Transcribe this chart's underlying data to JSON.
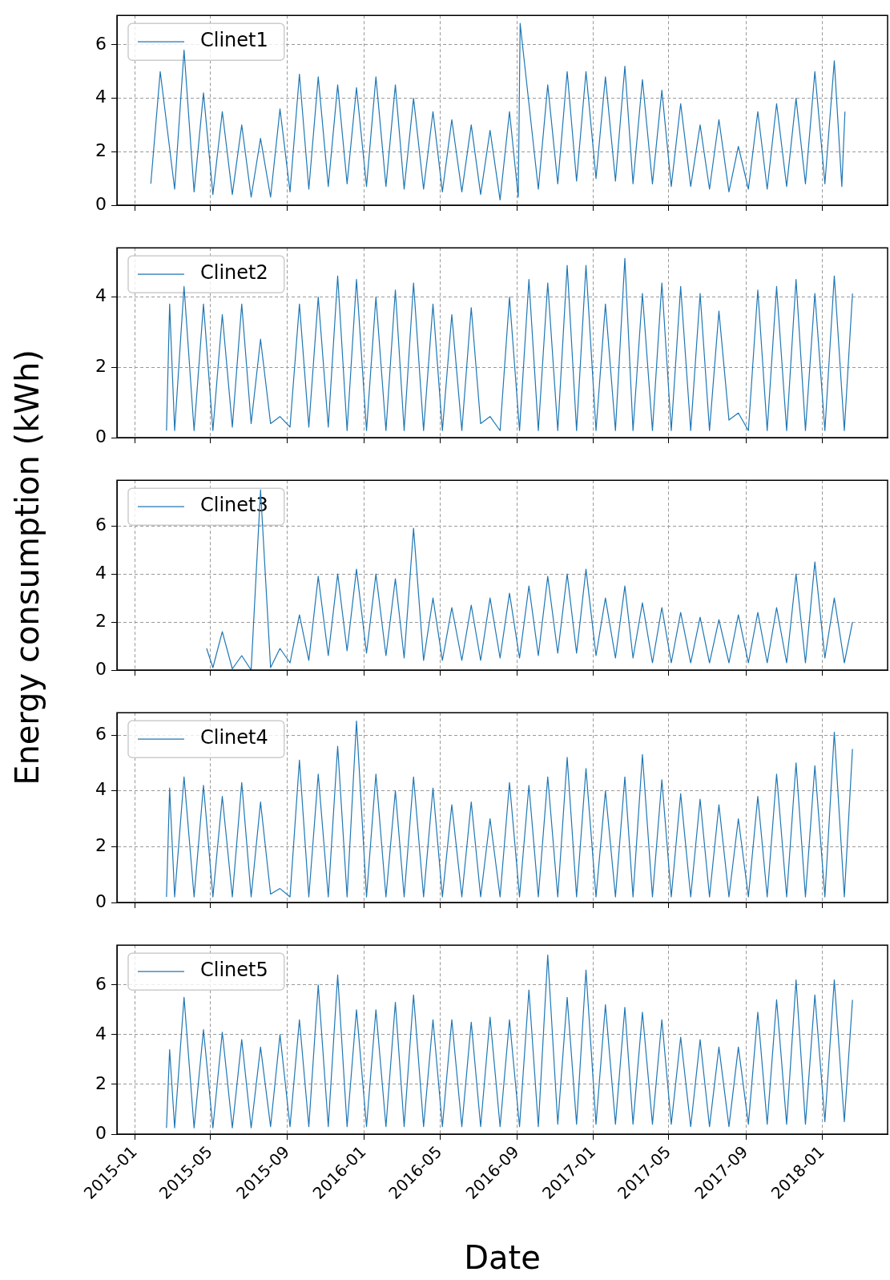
{
  "chart_data": [
    {
      "type": "line",
      "ylabel": "Energy consumption (kWh)",
      "xlim": [
        "2014-12-03",
        "2018-04-15"
      ],
      "ylim": [
        0,
        7.1
      ],
      "yticks": [
        0,
        2,
        4,
        6
      ],
      "xticks": [
        "2015-01",
        "2015-05",
        "2015-09",
        "2016-01",
        "2016-05",
        "2016-09",
        "2017-01",
        "2017-05",
        "2017-09",
        "2018-01"
      ],
      "tick_labels": "y",
      "grid": true,
      "legend": "top left",
      "marker": "none",
      "line_style": "solid",
      "series": [
        {
          "name": "Clinet1",
          "color": "#1f77b4",
          "x": [
            "2015-01-26",
            "2015-02-10",
            "2015-03-05",
            "2015-03-20",
            "2015-04-05",
            "2015-04-20",
            "2015-05-05",
            "2015-05-20",
            "2015-06-05",
            "2015-06-20",
            "2015-07-05",
            "2015-07-20",
            "2015-08-05",
            "2015-08-20",
            "2015-09-05",
            "2015-09-20",
            "2015-10-05",
            "2015-10-20",
            "2015-11-05",
            "2015-11-20",
            "2015-12-05",
            "2015-12-20",
            "2016-01-05",
            "2016-01-20",
            "2016-02-05",
            "2016-02-20",
            "2016-03-05",
            "2016-03-20",
            "2016-04-05",
            "2016-04-20",
            "2016-05-05",
            "2016-05-20",
            "2016-06-05",
            "2016-06-20",
            "2016-07-05",
            "2016-07-20",
            "2016-08-05",
            "2016-08-20",
            "2016-09-03",
            "2016-09-06",
            "2016-10-05",
            "2016-10-20",
            "2016-11-05",
            "2016-11-20",
            "2016-12-05",
            "2016-12-20",
            "2017-01-05",
            "2017-01-20",
            "2017-02-05",
            "2017-02-20",
            "2017-03-05",
            "2017-03-20",
            "2017-04-05",
            "2017-04-20",
            "2017-05-05",
            "2017-05-20",
            "2017-06-05",
            "2017-06-20",
            "2017-07-05",
            "2017-07-20",
            "2017-08-05",
            "2017-08-20",
            "2017-09-05",
            "2017-09-20",
            "2017-10-05",
            "2017-10-20",
            "2017-11-05",
            "2017-11-20",
            "2017-12-05",
            "2017-12-20",
            "2018-01-05",
            "2018-01-20",
            "2018-02-01",
            "2018-02-06"
          ],
          "values": [
            0.8,
            5.0,
            0.6,
            5.8,
            0.5,
            4.2,
            0.4,
            3.5,
            0.4,
            3.0,
            0.3,
            2.5,
            0.3,
            3.6,
            0.5,
            4.9,
            0.6,
            4.8,
            0.7,
            4.5,
            0.8,
            4.4,
            0.7,
            4.8,
            0.7,
            4.5,
            0.6,
            4.0,
            0.6,
            3.5,
            0.5,
            3.2,
            0.5,
            3.0,
            0.4,
            2.8,
            0.2,
            3.5,
            0.3,
            6.8,
            0.6,
            4.5,
            0.8,
            5.0,
            0.9,
            5.0,
            1.0,
            4.8,
            0.9,
            5.2,
            0.8,
            4.7,
            0.8,
            4.3,
            0.7,
            3.8,
            0.7,
            3.0,
            0.6,
            3.2,
            0.5,
            2.2,
            0.6,
            3.5,
            0.6,
            3.8,
            0.7,
            4.0,
            0.8,
            5.0,
            0.8,
            5.4,
            0.7,
            3.5
          ]
        }
      ]
    },
    {
      "type": "line",
      "xlim": [
        "2014-12-03",
        "2018-04-15"
      ],
      "ylim": [
        0,
        5.4
      ],
      "yticks": [
        0,
        2,
        4
      ],
      "xticks": [
        "2015-01",
        "2015-05",
        "2015-09",
        "2016-01",
        "2016-05",
        "2016-09",
        "2017-01",
        "2017-05",
        "2017-09",
        "2018-01"
      ],
      "tick_labels": "y",
      "grid": true,
      "legend": "top left",
      "marker": "none",
      "line_style": "solid",
      "series": [
        {
          "name": "Clinet2",
          "color": "#1f77b4",
          "x": [
            "2015-02-20",
            "2015-02-25",
            "2015-03-05",
            "2015-03-20",
            "2015-04-05",
            "2015-04-20",
            "2015-05-05",
            "2015-05-20",
            "2015-06-05",
            "2015-06-20",
            "2015-07-05",
            "2015-07-20",
            "2015-08-05",
            "2015-08-20",
            "2015-09-05",
            "2015-09-20",
            "2015-10-05",
            "2015-10-20",
            "2015-11-05",
            "2015-11-20",
            "2015-12-05",
            "2015-12-20",
            "2016-01-05",
            "2016-01-20",
            "2016-02-05",
            "2016-02-20",
            "2016-03-05",
            "2016-03-20",
            "2016-04-05",
            "2016-04-20",
            "2016-05-05",
            "2016-05-20",
            "2016-06-05",
            "2016-06-20",
            "2016-07-05",
            "2016-07-20",
            "2016-08-05",
            "2016-08-20",
            "2016-09-05",
            "2016-09-20",
            "2016-10-05",
            "2016-10-20",
            "2016-11-05",
            "2016-11-20",
            "2016-12-05",
            "2016-12-20",
            "2017-01-05",
            "2017-01-20",
            "2017-02-05",
            "2017-02-20",
            "2017-03-05",
            "2017-03-20",
            "2017-04-05",
            "2017-04-20",
            "2017-05-05",
            "2017-05-20",
            "2017-06-05",
            "2017-06-20",
            "2017-07-05",
            "2017-07-20",
            "2017-08-05",
            "2017-08-20",
            "2017-09-05",
            "2017-09-20",
            "2017-10-05",
            "2017-10-20",
            "2017-11-05",
            "2017-11-20",
            "2017-12-05",
            "2017-12-20",
            "2018-01-05",
            "2018-01-20",
            "2018-02-05",
            "2018-02-18"
          ],
          "values": [
            0.2,
            3.8,
            0.2,
            4.3,
            0.2,
            3.8,
            0.2,
            3.5,
            0.3,
            3.8,
            0.4,
            2.8,
            0.4,
            0.6,
            0.3,
            3.8,
            0.3,
            4.0,
            0.3,
            4.6,
            0.2,
            4.5,
            0.2,
            4.0,
            0.2,
            4.2,
            0.2,
            4.4,
            0.2,
            3.8,
            0.2,
            3.5,
            0.2,
            3.7,
            0.4,
            0.6,
            0.2,
            4.0,
            0.2,
            4.5,
            0.2,
            4.4,
            0.2,
            4.9,
            0.2,
            4.9,
            0.2,
            3.8,
            0.2,
            5.1,
            0.2,
            4.1,
            0.2,
            4.4,
            0.2,
            4.3,
            0.2,
            4.1,
            0.2,
            3.6,
            0.5,
            0.7,
            0.2,
            4.2,
            0.2,
            4.3,
            0.2,
            4.5,
            0.2,
            4.1,
            0.2,
            4.6,
            0.2,
            4.1
          ]
        }
      ]
    },
    {
      "type": "line",
      "xlim": [
        "2014-12-03",
        "2018-04-15"
      ],
      "ylim": [
        0,
        7.9
      ],
      "yticks": [
        0,
        2,
        4,
        6
      ],
      "xticks": [
        "2015-01",
        "2015-05",
        "2015-09",
        "2016-01",
        "2016-05",
        "2016-09",
        "2017-01",
        "2017-05",
        "2017-09",
        "2018-01"
      ],
      "tick_labels": "y",
      "grid": true,
      "legend": "top left",
      "marker": "none",
      "line_style": "solid",
      "series": [
        {
          "name": "Clinet3",
          "color": "#1f77b4",
          "x": [
            "2015-04-25",
            "2015-05-05",
            "2015-05-20",
            "2015-06-05",
            "2015-06-20",
            "2015-07-05",
            "2015-07-20",
            "2015-08-05",
            "2015-08-20",
            "2015-09-05",
            "2015-09-20",
            "2015-10-05",
            "2015-10-20",
            "2015-11-05",
            "2015-11-20",
            "2015-12-05",
            "2015-12-20",
            "2016-01-05",
            "2016-01-20",
            "2016-02-05",
            "2016-02-20",
            "2016-03-05",
            "2016-03-20",
            "2016-04-05",
            "2016-04-20",
            "2016-05-05",
            "2016-05-20",
            "2016-06-05",
            "2016-06-20",
            "2016-07-05",
            "2016-07-20",
            "2016-08-05",
            "2016-08-20",
            "2016-09-05",
            "2016-09-20",
            "2016-10-05",
            "2016-10-20",
            "2016-11-05",
            "2016-11-20",
            "2016-12-05",
            "2016-12-20",
            "2017-01-05",
            "2017-01-20",
            "2017-02-05",
            "2017-02-20",
            "2017-03-05",
            "2017-03-20",
            "2017-04-05",
            "2017-04-20",
            "2017-05-05",
            "2017-05-20",
            "2017-06-05",
            "2017-06-20",
            "2017-07-05",
            "2017-07-20",
            "2017-08-05",
            "2017-08-20",
            "2017-09-05",
            "2017-09-20",
            "2017-10-05",
            "2017-10-20",
            "2017-11-05",
            "2017-11-20",
            "2017-12-05",
            "2017-12-20",
            "2018-01-05",
            "2018-01-20",
            "2018-02-05",
            "2018-02-18"
          ],
          "values": [
            0.9,
            0.1,
            1.6,
            0.05,
            0.6,
            0.0,
            7.5,
            0.1,
            0.9,
            0.3,
            2.3,
            0.4,
            3.9,
            0.6,
            4.0,
            0.8,
            4.2,
            0.7,
            4.0,
            0.6,
            3.8,
            0.5,
            5.9,
            0.4,
            3.0,
            0.4,
            2.6,
            0.4,
            2.7,
            0.4,
            3.0,
            0.5,
            3.2,
            0.5,
            3.5,
            0.6,
            3.9,
            0.7,
            4.0,
            0.7,
            4.2,
            0.6,
            3.0,
            0.5,
            3.5,
            0.5,
            2.8,
            0.3,
            2.6,
            0.3,
            2.4,
            0.3,
            2.2,
            0.3,
            2.1,
            0.3,
            2.3,
            0.3,
            2.4,
            0.3,
            2.6,
            0.3,
            4.0,
            0.3,
            4.5,
            0.5,
            3.0,
            0.3,
            2.0
          ]
        }
      ]
    },
    {
      "type": "line",
      "xlim": [
        "2014-12-03",
        "2018-04-15"
      ],
      "ylim": [
        0,
        6.8
      ],
      "yticks": [
        0,
        2,
        4,
        6
      ],
      "xticks": [
        "2015-01",
        "2015-05",
        "2015-09",
        "2016-01",
        "2016-05",
        "2016-09",
        "2017-01",
        "2017-05",
        "2017-09",
        "2018-01"
      ],
      "tick_labels": "y",
      "grid": true,
      "legend": "top left",
      "marker": "none",
      "line_style": "solid",
      "series": [
        {
          "name": "Clinet4",
          "color": "#1f77b4",
          "x": [
            "2015-02-20",
            "2015-02-25",
            "2015-03-05",
            "2015-03-20",
            "2015-04-05",
            "2015-04-20",
            "2015-05-05",
            "2015-05-20",
            "2015-06-05",
            "2015-06-20",
            "2015-07-05",
            "2015-07-20",
            "2015-08-05",
            "2015-08-20",
            "2015-09-05",
            "2015-09-20",
            "2015-10-05",
            "2015-10-20",
            "2015-11-05",
            "2015-11-20",
            "2015-12-05",
            "2015-12-20",
            "2016-01-05",
            "2016-01-20",
            "2016-02-05",
            "2016-02-20",
            "2016-03-05",
            "2016-03-20",
            "2016-04-05",
            "2016-04-20",
            "2016-05-05",
            "2016-05-20",
            "2016-06-05",
            "2016-06-20",
            "2016-07-05",
            "2016-07-20",
            "2016-08-05",
            "2016-08-20",
            "2016-09-05",
            "2016-09-20",
            "2016-10-05",
            "2016-10-20",
            "2016-11-05",
            "2016-11-20",
            "2016-12-05",
            "2016-12-20",
            "2017-01-05",
            "2017-01-20",
            "2017-02-05",
            "2017-02-20",
            "2017-03-05",
            "2017-03-20",
            "2017-04-05",
            "2017-04-20",
            "2017-05-05",
            "2017-05-20",
            "2017-06-05",
            "2017-06-20",
            "2017-07-05",
            "2017-07-20",
            "2017-08-05",
            "2017-08-20",
            "2017-09-05",
            "2017-09-20",
            "2017-10-05",
            "2017-10-20",
            "2017-11-05",
            "2017-11-20",
            "2017-12-05",
            "2017-12-20",
            "2018-01-05",
            "2018-01-20",
            "2018-02-05",
            "2018-02-18"
          ],
          "values": [
            0.2,
            4.1,
            0.2,
            4.5,
            0.2,
            4.2,
            0.2,
            3.8,
            0.2,
            4.3,
            0.2,
            3.6,
            0.3,
            0.5,
            0.2,
            5.1,
            0.2,
            4.6,
            0.2,
            5.6,
            0.2,
            6.5,
            0.2,
            4.6,
            0.2,
            4.0,
            0.2,
            4.5,
            0.2,
            4.1,
            0.2,
            3.5,
            0.2,
            3.6,
            0.2,
            3.0,
            0.2,
            4.3,
            0.2,
            4.2,
            0.2,
            4.5,
            0.2,
            5.2,
            0.2,
            4.8,
            0.2,
            4.0,
            0.2,
            4.5,
            0.2,
            5.3,
            0.2,
            4.4,
            0.2,
            3.9,
            0.2,
            3.7,
            0.2,
            3.5,
            0.2,
            3.0,
            0.2,
            3.8,
            0.2,
            4.6,
            0.2,
            5.0,
            0.2,
            4.9,
            0.2,
            6.1,
            0.2,
            5.5
          ]
        }
      ]
    },
    {
      "type": "line",
      "xlabel": "Date",
      "xlim": [
        "2014-12-03",
        "2018-04-15"
      ],
      "ylim": [
        0,
        7.6
      ],
      "yticks": [
        0,
        2,
        4,
        6
      ],
      "xticks": [
        "2015-01",
        "2015-05",
        "2015-09",
        "2016-01",
        "2016-05",
        "2016-09",
        "2017-01",
        "2017-05",
        "2017-09",
        "2018-01"
      ],
      "grid": true,
      "legend": "top left",
      "marker": "none",
      "line_style": "solid",
      "series": [
        {
          "name": "Clinet5",
          "color": "#1f77b4",
          "x": [
            "2015-02-20",
            "2015-02-25",
            "2015-03-05",
            "2015-03-20",
            "2015-04-05",
            "2015-04-20",
            "2015-05-05",
            "2015-05-20",
            "2015-06-05",
            "2015-06-20",
            "2015-07-05",
            "2015-07-20",
            "2015-08-05",
            "2015-08-20",
            "2015-09-05",
            "2015-09-20",
            "2015-10-05",
            "2015-10-20",
            "2015-11-05",
            "2015-11-20",
            "2015-12-05",
            "2015-12-20",
            "2016-01-05",
            "2016-01-20",
            "2016-02-05",
            "2016-02-20",
            "2016-03-05",
            "2016-03-20",
            "2016-04-05",
            "2016-04-20",
            "2016-05-05",
            "2016-05-20",
            "2016-06-05",
            "2016-06-20",
            "2016-07-05",
            "2016-07-20",
            "2016-08-05",
            "2016-08-20",
            "2016-09-05",
            "2016-09-20",
            "2016-10-05",
            "2016-10-20",
            "2016-11-05",
            "2016-11-20",
            "2016-12-05",
            "2016-12-20",
            "2017-01-05",
            "2017-01-20",
            "2017-02-05",
            "2017-02-20",
            "2017-03-05",
            "2017-03-20",
            "2017-04-05",
            "2017-04-20",
            "2017-05-05",
            "2017-05-20",
            "2017-06-05",
            "2017-06-20",
            "2017-07-05",
            "2017-07-20",
            "2017-08-05",
            "2017-08-20",
            "2017-09-05",
            "2017-09-20",
            "2017-10-05",
            "2017-10-20",
            "2017-11-05",
            "2017-11-20",
            "2017-12-05",
            "2017-12-20",
            "2018-01-05",
            "2018-01-20",
            "2018-02-05",
            "2018-02-18"
          ],
          "values": [
            0.25,
            3.4,
            0.25,
            5.5,
            0.25,
            4.2,
            0.25,
            4.1,
            0.25,
            3.8,
            0.25,
            3.5,
            0.3,
            4.0,
            0.3,
            4.6,
            0.3,
            6.0,
            0.3,
            6.4,
            0.3,
            5.0,
            0.3,
            5.0,
            0.3,
            5.3,
            0.3,
            5.6,
            0.3,
            4.6,
            0.3,
            4.6,
            0.3,
            4.5,
            0.3,
            4.7,
            0.3,
            4.6,
            0.3,
            5.8,
            0.3,
            7.2,
            0.4,
            5.5,
            0.4,
            6.6,
            0.4,
            5.2,
            0.4,
            5.1,
            0.4,
            4.9,
            0.4,
            4.6,
            0.4,
            3.9,
            0.3,
            3.8,
            0.3,
            3.5,
            0.3,
            3.5,
            0.4,
            4.9,
            0.4,
            5.4,
            0.4,
            6.2,
            0.4,
            5.6,
            0.5,
            6.2,
            0.5,
            5.4
          ]
        }
      ]
    }
  ]
}
